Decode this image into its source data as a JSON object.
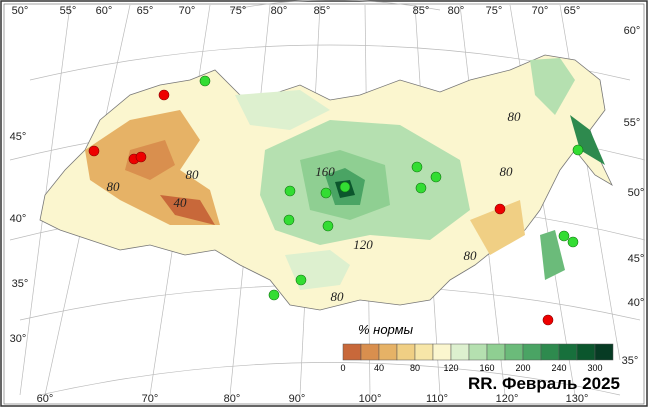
{
  "map": {
    "top_labels": [
      "50°",
      "55°",
      "60°",
      "65°",
      "70°",
      "75°",
      "80°",
      "85°",
      "85°",
      "80°",
      "75°",
      "70°",
      "65°",
      "60°"
    ],
    "left_labels": [
      "45°",
      "40°",
      "35°",
      "30°"
    ],
    "right_labels": [
      "55°",
      "50°",
      "45°",
      "40°",
      "35°"
    ],
    "bottom_labels": [
      "60°",
      "70°",
      "80°",
      "90°",
      "100°",
      "110°",
      "120°",
      "130°"
    ],
    "contour_labels": [
      "80",
      "160",
      "80",
      "80",
      "40",
      "80",
      "120",
      "80",
      "80"
    ],
    "legend": {
      "title": "% нормы",
      "colors": [
        "#c8683a",
        "#d98f4e",
        "#e6b266",
        "#f0cf84",
        "#f7e6a8",
        "#fbf6cf",
        "#ddf0cf",
        "#b5e0b0",
        "#8fcf92",
        "#6bbb7a",
        "#4aa464",
        "#2e8a4e",
        "#17703c",
        "#0b562d",
        "#073b24"
      ],
      "ticks": [
        0,
        40,
        80,
        120,
        160,
        200,
        240,
        300
      ]
    },
    "footer": "RR.  Февраль 2025"
  }
}
